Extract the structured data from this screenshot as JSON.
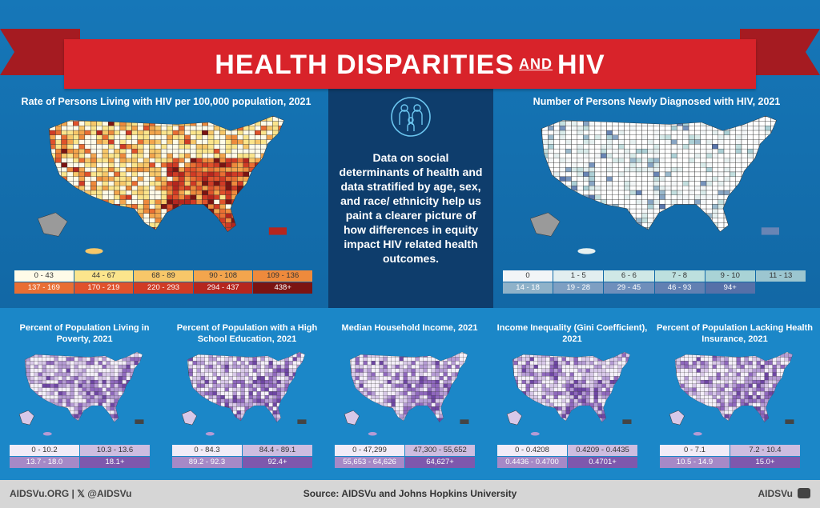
{
  "banner": {
    "title_a": "HEALTH DISPARITIES",
    "title_and": "AND",
    "title_b": "HIV"
  },
  "center": {
    "icon": "family-icon",
    "text": "Data on social determinants of health and data stratified by age, sex, and race/ ethnicity help us paint a clearer picture of how differences in equity impact HIV related health outcomes."
  },
  "maps": {
    "living": {
      "title": "Rate of Persons Living with HIV per 100,000 population, 2021",
      "legend": [
        {
          "label": "0 - 43",
          "color": "#fffbe8",
          "text": "#333"
        },
        {
          "label": "44 - 67",
          "color": "#fbe58c",
          "text": "#333"
        },
        {
          "label": "68 - 89",
          "color": "#f7c769",
          "text": "#333"
        },
        {
          "label": "90 - 108",
          "color": "#f3a54d",
          "text": "#333"
        },
        {
          "label": "109 - 136",
          "color": "#ee8a3c",
          "text": "#333"
        },
        {
          "label": "137 - 169",
          "color": "#e96e33",
          "text": "#fff"
        },
        {
          "label": "170 - 219",
          "color": "#e0522b",
          "text": "#fff"
        },
        {
          "label": "220 - 293",
          "color": "#d03b25",
          "text": "#fff"
        },
        {
          "label": "294 - 437",
          "color": "#b5261e",
          "text": "#fff"
        },
        {
          "label": "438+",
          "color": "#7b1412",
          "text": "#fff"
        }
      ]
    },
    "new": {
      "title": "Number of Persons Newly Diagnosed with HIV, 2021",
      "legend": [
        {
          "label": "0",
          "color": "#f2f5f7",
          "text": "#333"
        },
        {
          "label": "1 - 5",
          "color": "#e2eef0",
          "text": "#333"
        },
        {
          "label": "6 - 6",
          "color": "#cfe8e6",
          "text": "#333"
        },
        {
          "label": "7 - 8",
          "color": "#bde0de",
          "text": "#333"
        },
        {
          "label": "9 - 10",
          "color": "#a9d3d6",
          "text": "#333"
        },
        {
          "label": "11 - 13",
          "color": "#9cc6d0",
          "text": "#333"
        },
        {
          "label": "14 - 18",
          "color": "#8fb2c9",
          "text": "#fff"
        },
        {
          "label": "19 - 28",
          "color": "#7e9fc2",
          "text": "#fff"
        },
        {
          "label": "29 - 45",
          "color": "#6f8fbb",
          "text": "#fff"
        },
        {
          "label": "46 - 93",
          "color": "#6280b2",
          "text": "#fff"
        },
        {
          "label": "94+",
          "color": "#5670a8",
          "text": "#fff"
        }
      ]
    },
    "small": [
      {
        "title": "Percent of Population Living in Poverty, 2021",
        "legend": [
          "0 - 10.2",
          "10.3 - 13.6",
          "13.7 - 18.0",
          "18.1+"
        ]
      },
      {
        "title": "Percent of Population with a High School Education, 2021",
        "legend": [
          "0 - 84.3",
          "84.4 - 89.1",
          "89.2 - 92.3",
          "92.4+"
        ]
      },
      {
        "title": "Median Household Income, 2021",
        "legend": [
          "0 - 47,299",
          "47,300 - 55,652",
          "55,653 - 64,626",
          "64,627+"
        ]
      },
      {
        "title": "Income Inequality (Gini Coefficient), 2021",
        "legend": [
          "0 - 0.4208",
          "0.4209 - 0.4435",
          "0.4436 - 0.4700",
          "0.4701+"
        ]
      },
      {
        "title": "Percent of Population Lacking Health Insurance, 2021",
        "legend": [
          "0 - 7.1",
          "7.2 - 10.4",
          "10.5 - 14.9",
          "15.0+"
        ]
      }
    ],
    "purple_legend_colors": [
      "#f1ecf7",
      "#cdbde0",
      "#a689c7",
      "#7e58ad"
    ],
    "purple_text_colors": [
      "#333",
      "#333",
      "#fff",
      "#fff"
    ]
  },
  "footer": {
    "left": "AIDSVu.ORG  |  𝕏 @AIDSVu",
    "source": "Source: AIDSVu and Johns Hopkins University",
    "brand": "AIDSVu"
  }
}
